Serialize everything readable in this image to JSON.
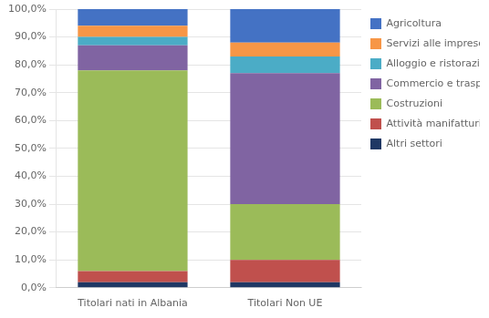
{
  "chart_data": {
    "type": "bar",
    "stacked": true,
    "categories": [
      "Titolari nati in Albania",
      "Titolari Non UE"
    ],
    "series": [
      {
        "name": "Altri settori",
        "color": "#1f3864",
        "values": [
          2.0,
          2.0
        ]
      },
      {
        "name": "Attività manifatturiere",
        "color": "#c0504d",
        "values": [
          4.0,
          8.0
        ]
      },
      {
        "name": "Costruzioni",
        "color": "#9bbb59",
        "values": [
          72.0,
          20.0
        ]
      },
      {
        "name": "Commercio e trasporti",
        "color": "#8064a2",
        "values": [
          9.0,
          47.0
        ]
      },
      {
        "name": "Alloggio e ristorazione",
        "color": "#4bacc6",
        "values": [
          3.0,
          6.0
        ]
      },
      {
        "name": "Servizi alle imprese",
        "color": "#f79646",
        "values": [
          4.0,
          5.0
        ]
      },
      {
        "name": "Agricoltura",
        "color": "#4472c4",
        "values": [
          6.0,
          12.0
        ]
      }
    ],
    "ylim": [
      0,
      100
    ],
    "yticks": [
      {
        "value": 0,
        "label": "0,0%"
      },
      {
        "value": 10,
        "label": "10,0%"
      },
      {
        "value": 20,
        "label": "20,0%"
      },
      {
        "value": 30,
        "label": "30,0%"
      },
      {
        "value": 40,
        "label": "40,0%"
      },
      {
        "value": 50,
        "label": "50,0%"
      },
      {
        "value": 60,
        "label": "60,0%"
      },
      {
        "value": 70,
        "label": "70,0%"
      },
      {
        "value": 80,
        "label": "80,0%"
      },
      {
        "value": 90,
        "label": "90,0%"
      },
      {
        "value": 100,
        "label": "100,0%"
      }
    ],
    "grid": true,
    "legend": "right"
  }
}
